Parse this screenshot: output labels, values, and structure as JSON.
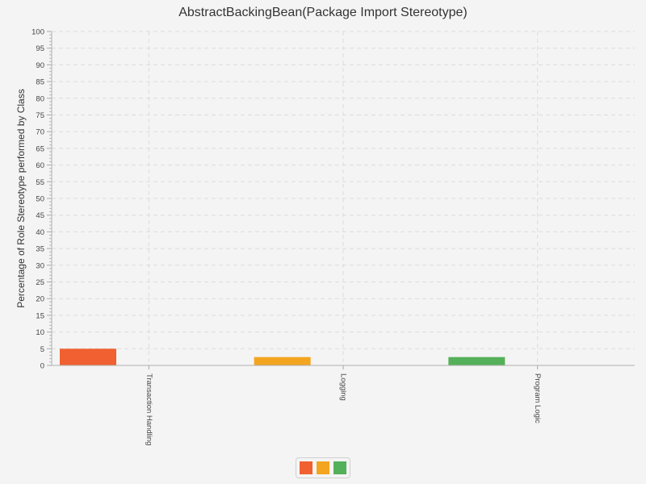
{
  "chart_data": {
    "type": "bar",
    "title": "AbstractBackingBean(Package Import Stereotype)",
    "xlabel": "",
    "ylabel": "Percentage of Role Stereotype performed by Class",
    "categories": [
      "Transaction Handling",
      "Logging",
      "Program Logic"
    ],
    "values": [
      5,
      2.5,
      2.5
    ],
    "colors": [
      "#f06030",
      "#f3a51f",
      "#55b05a"
    ],
    "ylim": [
      0,
      100
    ],
    "ytick_step": 5,
    "yticks": [
      "0",
      "5",
      "10",
      "15",
      "20",
      "25",
      "30",
      "35",
      "40",
      "45",
      "50",
      "55",
      "60",
      "65",
      "70",
      "75",
      "80",
      "85",
      "90",
      "95",
      "100"
    ],
    "grid": true,
    "legend": {
      "position": "bottom-center",
      "entries": [
        "",
        "",
        ""
      ]
    }
  }
}
